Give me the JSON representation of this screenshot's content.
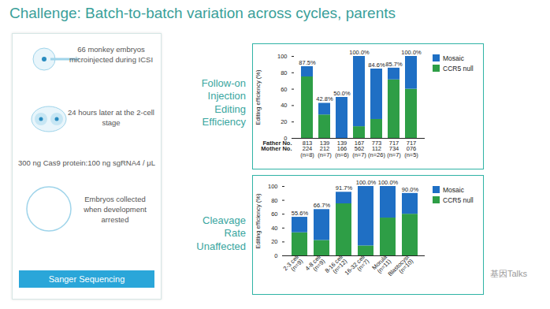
{
  "title": "Challenge: Batch-to-batch variation across cycles, parents",
  "protocol": {
    "steps": [
      "66 monkey embryos microinjected during ICSI",
      "24 hours later at the 2-cell stage",
      "300 ng Cas9 protein:100 ng sgRNA4 / μL",
      "Embryos collected when development arrested"
    ],
    "button": "Sanger Sequencing"
  },
  "side_labels": [
    "Follow-on Injection Editing Efficiency",
    "Cleavage Rate Unaffected"
  ],
  "watermark": "基因Talks",
  "chart_data": [
    {
      "type": "bar",
      "stacked": true,
      "data_labels": true,
      "y_label": "Editing efficiency (%)",
      "row_headers": [
        "Father No.",
        "Mother No."
      ],
      "categories": [
        "813",
        "139",
        "139",
        "167",
        "773",
        "717",
        "717"
      ],
      "mother_no": [
        "224",
        "212",
        "166",
        "562",
        "112",
        "734",
        "076"
      ],
      "n_labels": [
        "(n=8)",
        "(n=7)",
        "(n=6)",
        "(n=7)",
        "(n=26)",
        "(n=7)",
        "(n=5)"
      ],
      "series": [
        {
          "name": "Mosaic",
          "color": "#1f6fc4",
          "values": [
            12.5,
            14.2,
            50.0,
            85.7,
            61.5,
            14.3,
            40.0
          ]
        },
        {
          "name": "CCR5 null",
          "color": "#2e9e46",
          "values": [
            75.0,
            28.6,
            0,
            14.3,
            23.1,
            71.4,
            60.0
          ]
        }
      ],
      "totals": [
        87.5,
        42.8,
        50.0,
        100.0,
        84.6,
        85.7,
        100.0
      ],
      "total_labels": [
        "87.5%",
        "42.8%",
        "50.0%",
        "100.0%",
        "84.6%",
        "85.7%",
        "100.0%"
      ],
      "ylim": [
        0,
        100
      ],
      "yticks": [
        0,
        20,
        40,
        60,
        80,
        100
      ],
      "legend": "top-right"
    },
    {
      "type": "bar",
      "stacked": true,
      "data_labels": true,
      "y_label": "Editing efficiency (%)",
      "categories": [
        "2-3 cell",
        "4-8 cell",
        "8-16 cell",
        "16-32 cell",
        "Morula",
        "Blastocyst"
      ],
      "n_labels": [
        "(n=9)",
        "(n=9)",
        "(n=12)",
        "(n=7)",
        "(n=11)",
        "(n=10)"
      ],
      "series": [
        {
          "name": "Mosaic",
          "color": "#1f6fc4",
          "values": [
            22.3,
            44.5,
            16.7,
            85.7,
            45.5,
            30.0
          ]
        },
        {
          "name": "CCR5 null",
          "color": "#2e9e46",
          "values": [
            33.3,
            22.2,
            75.0,
            14.3,
            54.5,
            60.0
          ]
        }
      ],
      "totals": [
        55.6,
        66.7,
        91.7,
        100.0,
        100.0,
        90.0
      ],
      "total_labels": [
        "55.6%",
        "66.7%",
        "91.7%",
        "100.0%",
        "100.0%",
        "90.0%"
      ],
      "ylim": [
        0,
        100
      ],
      "yticks": [
        0,
        20,
        40,
        60,
        80,
        100
      ],
      "legend": "top-right"
    }
  ]
}
